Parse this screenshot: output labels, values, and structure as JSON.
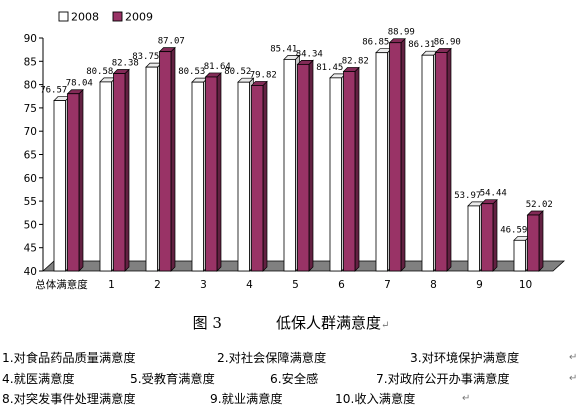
{
  "chart_data": {
    "type": "bar",
    "categories": [
      "总体满意度",
      "1",
      "2",
      "3",
      "4",
      "5",
      "6",
      "7",
      "8",
      "9",
      "10"
    ],
    "series": [
      {
        "name": "2008",
        "values": [
          76.57,
          80.58,
          83.75,
          80.53,
          80.52,
          85.41,
          81.45,
          86.85,
          86.31,
          53.97,
          46.59
        ]
      },
      {
        "name": "2009",
        "values": [
          78.04,
          82.38,
          87.07,
          81.64,
          79.82,
          84.34,
          82.82,
          88.99,
          86.9,
          54.44,
          52.02
        ]
      }
    ],
    "data_labels": [
      [
        "76.57",
        "80.58",
        "83.75",
        "80.53",
        "80.52",
        "85.41",
        "81.45",
        "86.85",
        "86.31",
        "53.97",
        "46.59"
      ],
      [
        "78.04",
        "82.38",
        "87.07",
        "81.64",
        "79.82",
        "84.34",
        "82.82",
        "88.99",
        "86.90",
        "54.44",
        "52.02"
      ]
    ],
    "yticks": [
      "40",
      "45",
      "50",
      "55",
      "60",
      "65",
      "70",
      "75",
      "80",
      "85",
      "90"
    ],
    "ylim": [
      40,
      90
    ],
    "legend_position": "top-left",
    "colors": {
      "2008": "#ffffff",
      "2009": "#993366",
      "floor": "#808080"
    }
  },
  "caption": {
    "figure": "图 3",
    "title": "低保人群满意度"
  },
  "notes": [
    [
      "1.对食品药品质量满意度",
      "2.对社会保障满意度",
      "3.对环境保护满意度"
    ],
    [
      "4.就医满意度",
      "5.受教育满意度",
      "6.安全感",
      "7.对政府公开办事满意度"
    ],
    [
      "8.对突发事件处理满意度",
      "9.就业满意度",
      "10.收入满意度"
    ]
  ],
  "paragraph_mark": "↵"
}
